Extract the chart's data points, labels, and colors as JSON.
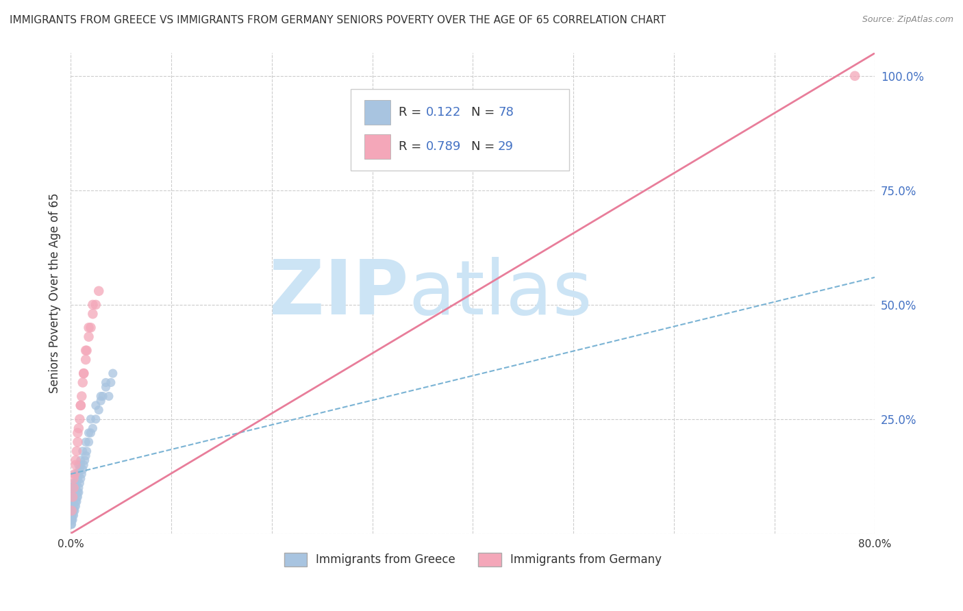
{
  "title": "IMMIGRANTS FROM GREECE VS IMMIGRANTS FROM GERMANY SENIORS POVERTY OVER THE AGE OF 65 CORRELATION CHART",
  "source": "Source: ZipAtlas.com",
  "ylabel": "Seniors Poverty Over the Age of 65",
  "xlim": [
    0.0,
    0.8
  ],
  "ylim": [
    0.0,
    1.05
  ],
  "xticks": [
    0.0,
    0.1,
    0.2,
    0.3,
    0.4,
    0.5,
    0.6,
    0.7,
    0.8
  ],
  "xticklabels": [
    "0.0%",
    "",
    "",
    "",
    "",
    "",
    "",
    "",
    "80.0%"
  ],
  "ytick_positions": [
    0.0,
    0.25,
    0.5,
    0.75,
    1.0
  ],
  "yticklabels": [
    "",
    "25.0%",
    "50.0%",
    "75.0%",
    "100.0%"
  ],
  "greece_color": "#a8c4e0",
  "germany_color": "#f4a7b9",
  "greece_R": 0.122,
  "greece_N": 78,
  "germany_R": 0.789,
  "germany_N": 29,
  "greece_line_color": "#7ab3d4",
  "germany_line_color": "#e87d9a",
  "watermark": "ZIPatlas",
  "watermark_color": "#cce4f5",
  "background_color": "#ffffff",
  "legend_label_greece": "Immigrants from Greece",
  "legend_label_germany": "Immigrants from Germany",
  "greece_scatter_x": [
    0.0005,
    0.0008,
    0.001,
    0.001,
    0.001,
    0.0012,
    0.0015,
    0.0015,
    0.002,
    0.002,
    0.002,
    0.002,
    0.002,
    0.003,
    0.003,
    0.003,
    0.003,
    0.004,
    0.004,
    0.004,
    0.005,
    0.005,
    0.005,
    0.005,
    0.006,
    0.006,
    0.007,
    0.007,
    0.008,
    0.008,
    0.009,
    0.01,
    0.01,
    0.011,
    0.012,
    0.013,
    0.014,
    0.015,
    0.016,
    0.018,
    0.02,
    0.022,
    0.025,
    0.028,
    0.03,
    0.032,
    0.035,
    0.038,
    0.04,
    0.042,
    0.001,
    0.001,
    0.002,
    0.002,
    0.003,
    0.003,
    0.004,
    0.005,
    0.006,
    0.007,
    0.008,
    0.009,
    0.01,
    0.012,
    0.015,
    0.018,
    0.02,
    0.025,
    0.03,
    0.035,
    0.001,
    0.002,
    0.003,
    0.004,
    0.005,
    0.006,
    0.007,
    0.008
  ],
  "greece_scatter_y": [
    0.02,
    0.03,
    0.04,
    0.05,
    0.06,
    0.03,
    0.05,
    0.07,
    0.04,
    0.06,
    0.07,
    0.08,
    0.1,
    0.05,
    0.07,
    0.09,
    0.11,
    0.06,
    0.08,
    0.1,
    0.07,
    0.09,
    0.11,
    0.13,
    0.08,
    0.12,
    0.09,
    0.13,
    0.1,
    0.15,
    0.11,
    0.12,
    0.16,
    0.13,
    0.14,
    0.15,
    0.16,
    0.17,
    0.18,
    0.2,
    0.22,
    0.23,
    0.25,
    0.27,
    0.29,
    0.3,
    0.32,
    0.3,
    0.33,
    0.35,
    0.03,
    0.04,
    0.05,
    0.06,
    0.07,
    0.08,
    0.09,
    0.1,
    0.11,
    0.12,
    0.13,
    0.14,
    0.15,
    0.18,
    0.2,
    0.22,
    0.25,
    0.28,
    0.3,
    0.33,
    0.02,
    0.03,
    0.04,
    0.05,
    0.06,
    0.07,
    0.08,
    0.09
  ],
  "germany_scatter_x": [
    0.001,
    0.002,
    0.003,
    0.004,
    0.005,
    0.006,
    0.007,
    0.008,
    0.009,
    0.01,
    0.011,
    0.012,
    0.013,
    0.015,
    0.016,
    0.018,
    0.02,
    0.022,
    0.025,
    0.028,
    0.003,
    0.005,
    0.007,
    0.01,
    0.013,
    0.015,
    0.018,
    0.022,
    0.78
  ],
  "germany_scatter_y": [
    0.05,
    0.08,
    0.1,
    0.13,
    0.16,
    0.18,
    0.2,
    0.23,
    0.25,
    0.28,
    0.3,
    0.33,
    0.35,
    0.38,
    0.4,
    0.43,
    0.45,
    0.48,
    0.5,
    0.53,
    0.12,
    0.15,
    0.22,
    0.28,
    0.35,
    0.4,
    0.45,
    0.5,
    1.0
  ],
  "greece_trend_x0": 0.0,
  "greece_trend_x1": 0.8,
  "greece_trend_y0": 0.13,
  "greece_trend_y1": 0.56,
  "germany_trend_x0": 0.0,
  "germany_trend_x1": 0.8,
  "germany_trend_y0": 0.0,
  "germany_trend_y1": 1.05
}
